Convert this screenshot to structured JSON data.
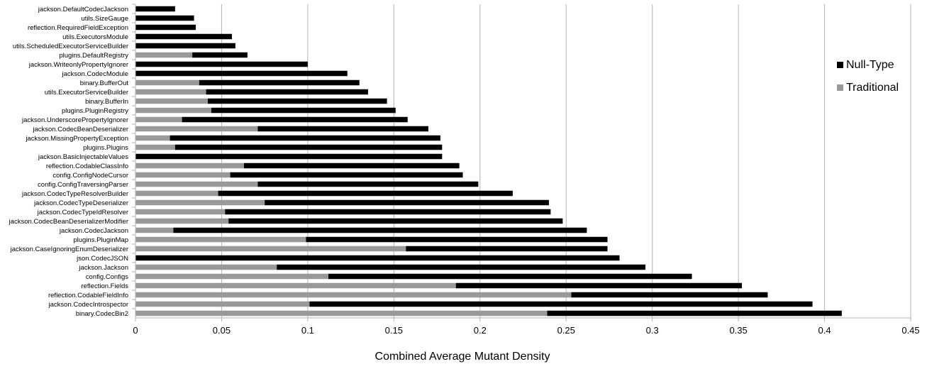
{
  "chart_data": {
    "type": "bar",
    "orientation": "horizontal",
    "stacked": true,
    "xlabel": "Combined Average Mutant Density",
    "xlim": [
      0,
      0.45
    ],
    "xticks": [
      "0",
      "0.05",
      "0.1",
      "0.15",
      "0.2",
      "0.25",
      "0.3",
      "0.35",
      "0.4",
      "0.45"
    ],
    "xtick_values": [
      0,
      0.05,
      0.1,
      0.15,
      0.2,
      0.25,
      0.3,
      0.35,
      0.4,
      0.45
    ],
    "grid": "vertical",
    "legend_position": "right",
    "categories": [
      "jackson.DefaultCodecJackson",
      "utils.SizeGauge",
      "reflection.RequiredFieldException",
      "utils.ExecutorsModule",
      "utils.ScheduledExecutorServiceBuilder",
      "plugins.DefaultRegistry",
      "jackson.WriteonlyPropertyIgnorer",
      "jackson.CodecModule",
      "binary.BufferOut",
      "utils.ExecutorServiceBuilder",
      "binary.BufferIn",
      "plugins.PluginRegistry",
      "jackson.UnderscorePropertyIgnorer",
      "jackson.CodecBeanDeserializer",
      "jackson.MissingPropertyException",
      "plugins.Plugins",
      "jackson.BasicInjectableValues",
      "reflection.CodableClassInfo",
      "config.ConfigNodeCursor",
      "config.ConfigTraversingParser",
      "jackson.CodecTypeResolverBuilder",
      "jackson.CodecTypeDeserializer",
      "jackson.CodecTypeIdResolver",
      "jackson.CodecBeanDeserializerModifier",
      "jackson.CodecJackson",
      "plugins.PluginMap",
      "jackson.CaseIgnoringEnumDeserializer",
      "json.CodecJSON",
      "jackson.Jackson",
      "config.Configs",
      "reflection.Fields",
      "reflection.CodableFieldInfo",
      "jackson.CodecIntrospector",
      "binary.CodecBin2"
    ],
    "series": [
      {
        "name": "Traditional",
        "color": "#999999",
        "values": [
          0,
          0,
          0,
          0,
          0,
          0.033,
          0,
          0,
          0.037,
          0.041,
          0.042,
          0.044,
          0.027,
          0.071,
          0.02,
          0.023,
          0,
          0.063,
          0.055,
          0.071,
          0.048,
          0.075,
          0.052,
          0.054,
          0.022,
          0.099,
          0.157,
          0,
          0.082,
          0.112,
          0.186,
          0.253,
          0.101,
          0.239
        ]
      },
      {
        "name": "Null-Type",
        "color": "#000000",
        "values": [
          0.023,
          0.034,
          0.035,
          0.056,
          0.058,
          0.032,
          0.1,
          0.123,
          0.093,
          0.094,
          0.104,
          0.107,
          0.131,
          0.099,
          0.157,
          0.155,
          0.178,
          0.125,
          0.135,
          0.128,
          0.171,
          0.165,
          0.189,
          0.194,
          0.24,
          0.175,
          0.117,
          0.281,
          0.214,
          0.211,
          0.166,
          0.114,
          0.292,
          0.171
        ]
      }
    ],
    "legend": [
      {
        "label": "Null-Type",
        "color": "#000000"
      },
      {
        "label": "Traditional",
        "color": "#999999"
      }
    ]
  }
}
